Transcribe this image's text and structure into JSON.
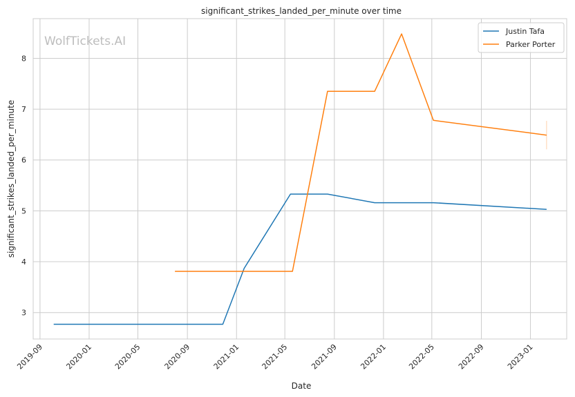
{
  "chart_data": {
    "type": "line",
    "title": "significant_strikes_landed_per_minute over time",
    "xlabel": "Date",
    "ylabel": "significant_strikes_landed_per_minute",
    "watermark": "WolfTickets.AI",
    "x_ticks": [
      "2019-09",
      "2020-01",
      "2020-05",
      "2020-09",
      "2021-01",
      "2021-05",
      "2021-09",
      "2022-01",
      "2022-05",
      "2022-09",
      "2023-01"
    ],
    "y_ticks": [
      3,
      4,
      5,
      6,
      7,
      8
    ],
    "xlim": [
      "2019-08-15",
      "2023-04-01"
    ],
    "ylim": [
      2.48,
      8.78
    ],
    "grid": true,
    "legend_position": "top-right",
    "series": [
      {
        "name": "Justin Tafa",
        "color": "#1f77b4",
        "points": [
          {
            "x": "2019-10-05",
            "y": 2.77
          },
          {
            "x": "2020-11-28",
            "y": 2.77
          },
          {
            "x": "2021-01-20",
            "y": 3.87
          },
          {
            "x": "2021-05-15",
            "y": 5.33
          },
          {
            "x": "2021-08-15",
            "y": 5.33
          },
          {
            "x": "2021-12-10",
            "y": 5.16
          },
          {
            "x": "2022-05-05",
            "y": 5.16
          },
          {
            "x": "2023-02-10",
            "y": 5.03
          }
        ]
      },
      {
        "name": "Parker Porter",
        "color": "#ff7f0e",
        "points": [
          {
            "x": "2020-08-01",
            "y": 3.81
          },
          {
            "x": "2021-05-20",
            "y": 3.81
          },
          {
            "x": "2021-08-15",
            "y": 7.35
          },
          {
            "x": "2021-12-10",
            "y": 7.35
          },
          {
            "x": "2022-02-15",
            "y": 8.48
          },
          {
            "x": "2022-05-05",
            "y": 6.78
          },
          {
            "x": "2023-02-10",
            "y": 6.49
          }
        ]
      }
    ]
  }
}
